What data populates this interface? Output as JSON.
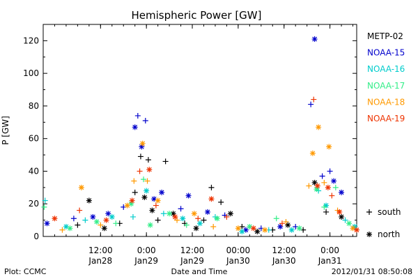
{
  "chart_data": {
    "type": "scatter",
    "title": "Hemispheric Power [GW]",
    "xlabel": "Date and Time",
    "ylabel": "P [GW]",
    "ylim": [
      0,
      130
    ],
    "yticks": [
      0,
      20,
      40,
      60,
      80,
      100,
      120
    ],
    "xlim": [
      "2012-01-27 21:00",
      "2012-01-31 07:00"
    ],
    "xticks": [
      {
        "t": "2012-01-28 12:00",
        "line1": "12:00",
        "line2": "Jan28"
      },
      {
        "t": "2012-01-29 00:00",
        "line1": "0:00",
        "line2": "Jan29"
      },
      {
        "t": "2012-01-29 12:00",
        "line1": "12:00",
        "line2": "Jan29"
      },
      {
        "t": "2012-01-30 00:00",
        "line1": "00:00",
        "line2": "Jan30"
      },
      {
        "t": "2012-01-30 12:00",
        "line1": "12:00",
        "line2": "Jan30"
      },
      {
        "t": "2012-01-31 00:00",
        "line1": "0:00",
        "line2": "Jan31"
      }
    ],
    "legend_position": "right",
    "marker_legend": [
      {
        "symbol": "+",
        "label": "south"
      },
      {
        "symbol": "*",
        "label": "north"
      }
    ],
    "series": [
      {
        "name": "METP-02",
        "color": "#000000",
        "points": [
          [
            "2012-01-28 06:00",
            7,
            "+"
          ],
          [
            "2012-01-28 09:00",
            22,
            "*"
          ],
          [
            "2012-01-28 13:00",
            5,
            "*"
          ],
          [
            "2012-01-28 17:00",
            8,
            "+"
          ],
          [
            "2012-01-28 21:00",
            27,
            "+"
          ],
          [
            "2012-01-28 22:30",
            49,
            "+"
          ],
          [
            "2012-01-28 23:30",
            24,
            "*"
          ],
          [
            "2012-01-29 00:30",
            47,
            "+"
          ],
          [
            "2012-01-29 01:30",
            16,
            "*"
          ],
          [
            "2012-01-29 03:00",
            10,
            "+"
          ],
          [
            "2012-01-29 05:00",
            46,
            "+"
          ],
          [
            "2012-01-29 07:00",
            14,
            "*"
          ],
          [
            "2012-01-29 10:00",
            8,
            "+"
          ],
          [
            "2012-01-29 13:00",
            5,
            "*"
          ],
          [
            "2012-01-29 15:00",
            10,
            "+"
          ],
          [
            "2012-01-29 17:00",
            30,
            "+"
          ],
          [
            "2012-01-29 19:30",
            21,
            "+"
          ],
          [
            "2012-01-29 22:00",
            14,
            "*"
          ],
          [
            "2012-01-30 01:00",
            6,
            "+"
          ],
          [
            "2012-01-30 05:00",
            3,
            "*"
          ],
          [
            "2012-01-30 09:00",
            4,
            "+"
          ],
          [
            "2012-01-30 13:00",
            7,
            "*"
          ],
          [
            "2012-01-30 17:00",
            4,
            "+"
          ],
          [
            "2012-01-30 20:00",
            33,
            "*"
          ],
          [
            "2012-01-30 23:00",
            15,
            "+"
          ],
          [
            "2012-01-31 03:00",
            12,
            "*"
          ]
        ]
      },
      {
        "name": "NOAA-15",
        "color": "#0000cc",
        "points": [
          [
            "2012-01-27 22:00",
            8,
            "*"
          ],
          [
            "2012-01-28 05:00",
            11,
            "+"
          ],
          [
            "2012-01-28 10:00",
            12,
            "*"
          ],
          [
            "2012-01-28 14:00",
            14,
            "*"
          ],
          [
            "2012-01-28 18:00",
            18,
            "+"
          ],
          [
            "2012-01-28 21:00",
            67,
            "*"
          ],
          [
            "2012-01-28 21:45",
            74,
            "+"
          ],
          [
            "2012-01-28 22:45",
            55,
            "*"
          ],
          [
            "2012-01-28 23:45",
            71,
            "+"
          ],
          [
            "2012-01-29 02:00",
            23,
            "*"
          ],
          [
            "2012-01-29 04:00",
            27,
            "*"
          ],
          [
            "2012-01-29 09:00",
            17,
            "+"
          ],
          [
            "2012-01-29 11:00",
            25,
            "*"
          ],
          [
            "2012-01-29 16:00",
            15,
            "*"
          ],
          [
            "2012-01-29 20:30",
            13,
            "+"
          ],
          [
            "2012-01-30 02:00",
            4,
            "*"
          ],
          [
            "2012-01-30 06:00",
            5,
            "+"
          ],
          [
            "2012-01-30 11:00",
            6,
            "*"
          ],
          [
            "2012-01-30 15:00",
            6,
            "+"
          ],
          [
            "2012-01-30 19:00",
            81,
            "+"
          ],
          [
            "2012-01-30 20:00",
            121,
            "*"
          ],
          [
            "2012-01-30 22:00",
            37,
            "+"
          ],
          [
            "2012-01-31 00:00",
            40,
            "+"
          ],
          [
            "2012-01-31 01:00",
            34,
            "*"
          ],
          [
            "2012-01-31 03:00",
            27,
            "*"
          ]
        ]
      },
      {
        "name": "NOAA-16",
        "color": "#00cccc",
        "points": [
          [
            "2012-01-27 21:30",
            22,
            "+"
          ],
          [
            "2012-01-28 03:00",
            6,
            "*"
          ],
          [
            "2012-01-28 08:00",
            10,
            "+"
          ],
          [
            "2012-01-28 15:00",
            12,
            "*"
          ],
          [
            "2012-01-28 20:30",
            12,
            "+"
          ],
          [
            "2012-01-29 00:00",
            28,
            "*"
          ],
          [
            "2012-01-29 04:30",
            14,
            "+"
          ],
          [
            "2012-01-29 09:30",
            11,
            "*"
          ],
          [
            "2012-01-29 14:00",
            8,
            "*"
          ],
          [
            "2012-01-29 18:00",
            12,
            "+"
          ],
          [
            "2012-01-30 01:00",
            3,
            "*"
          ],
          [
            "2012-01-30 08:00",
            4,
            "+"
          ],
          [
            "2012-01-30 14:00",
            4,
            "*"
          ],
          [
            "2012-01-30 21:00",
            28,
            "+"
          ],
          [
            "2012-01-30 23:00",
            19,
            "*"
          ],
          [
            "2012-01-31 04:00",
            10,
            "+"
          ],
          [
            "2012-01-31 06:30",
            6,
            "*"
          ]
        ]
      },
      {
        "name": "NOAA-17",
        "color": "#33ee88",
        "points": [
          [
            "2012-01-27 21:15",
            18,
            "+"
          ],
          [
            "2012-01-28 04:00",
            5,
            "*"
          ],
          [
            "2012-01-28 11:00",
            9,
            "*"
          ],
          [
            "2012-01-28 16:00",
            8,
            "+"
          ],
          [
            "2012-01-28 20:00",
            20,
            "*"
          ],
          [
            "2012-01-28 23:15",
            35,
            "+"
          ],
          [
            "2012-01-29 01:00",
            7,
            "*"
          ],
          [
            "2012-01-29 06:00",
            14,
            "*"
          ],
          [
            "2012-01-29 10:30",
            7,
            "+"
          ],
          [
            "2012-01-29 18:30",
            11,
            "*"
          ],
          [
            "2012-01-30 03:00",
            6,
            "*"
          ],
          [
            "2012-01-30 10:00",
            11,
            "+"
          ],
          [
            "2012-01-30 16:00",
            5,
            "*"
          ],
          [
            "2012-01-30 20:30",
            29,
            "*"
          ],
          [
            "2012-01-30 22:30",
            18,
            "+"
          ],
          [
            "2012-01-31 01:30",
            30,
            "+"
          ],
          [
            "2012-01-31 05:00",
            8,
            "*"
          ]
        ]
      },
      {
        "name": "NOAA-18",
        "color": "#ff9900",
        "points": [
          [
            "2012-01-28 02:00",
            4,
            "+"
          ],
          [
            "2012-01-28 07:00",
            30,
            "*"
          ],
          [
            "2012-01-28 12:00",
            7,
            "+"
          ],
          [
            "2012-01-28 19:00",
            19,
            "*"
          ],
          [
            "2012-01-28 20:45",
            34,
            "+"
          ],
          [
            "2012-01-28 23:00",
            57,
            "*"
          ],
          [
            "2012-01-29 00:15",
            34,
            "+"
          ],
          [
            "2012-01-29 03:00",
            22,
            "*"
          ],
          [
            "2012-01-29 08:00",
            10,
            "+"
          ],
          [
            "2012-01-29 12:30",
            14,
            "*"
          ],
          [
            "2012-01-29 17:30",
            6,
            "+"
          ],
          [
            "2012-01-30 00:00",
            5,
            "*"
          ],
          [
            "2012-01-30 07:00",
            4,
            "*"
          ],
          [
            "2012-01-30 12:30",
            9,
            "+"
          ],
          [
            "2012-01-30 18:30",
            31,
            "+"
          ],
          [
            "2012-01-30 19:30",
            51,
            "*"
          ],
          [
            "2012-01-30 21:00",
            67,
            "*"
          ],
          [
            "2012-01-30 22:30",
            33,
            "+"
          ],
          [
            "2012-01-30 23:45",
            55,
            "*"
          ],
          [
            "2012-01-31 02:00",
            16,
            "+"
          ],
          [
            "2012-01-31 06:00",
            5,
            "*"
          ]
        ]
      },
      {
        "name": "NOAA-19",
        "color": "#ee3300",
        "points": [
          [
            "2012-01-28 00:00",
            11,
            "*"
          ],
          [
            "2012-01-28 06:30",
            16,
            "+"
          ],
          [
            "2012-01-28 13:30",
            10,
            "*"
          ],
          [
            "2012-01-28 20:15",
            22,
            "*"
          ],
          [
            "2012-01-28 22:15",
            40,
            "+"
          ],
          [
            "2012-01-29 00:45",
            41,
            "*"
          ],
          [
            "2012-01-29 02:30",
            19,
            "+"
          ],
          [
            "2012-01-29 07:30",
            12,
            "*"
          ],
          [
            "2012-01-29 13:30",
            11,
            "+"
          ],
          [
            "2012-01-29 17:00",
            23,
            "*"
          ],
          [
            "2012-01-29 21:00",
            12,
            "+"
          ],
          [
            "2012-01-30 04:00",
            5,
            "*"
          ],
          [
            "2012-01-30 11:30",
            8,
            "+"
          ],
          [
            "2012-01-30 19:45",
            84,
            "+"
          ],
          [
            "2012-01-30 20:45",
            31,
            "*"
          ],
          [
            "2012-01-30 23:30",
            30,
            "*"
          ],
          [
            "2012-01-31 00:30",
            25,
            "+"
          ],
          [
            "2012-01-31 02:30",
            15,
            "*"
          ],
          [
            "2012-01-31 07:00",
            4,
            "*"
          ]
        ]
      }
    ]
  },
  "footer": {
    "left": "Plot: CCMC",
    "right": "2012/01/31 08:50:08"
  }
}
